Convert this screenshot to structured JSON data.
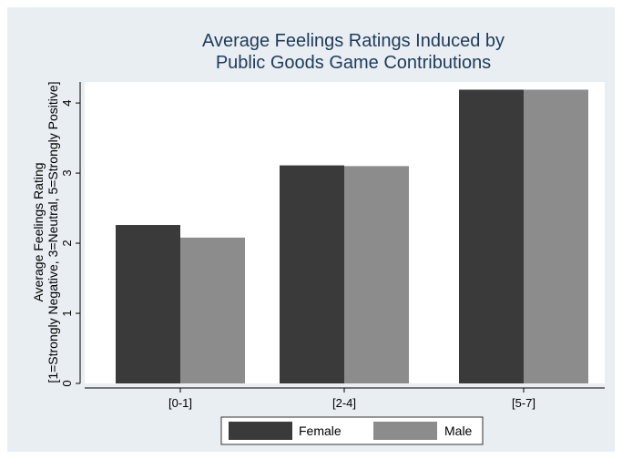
{
  "chart_data": {
    "type": "bar",
    "title_lines": [
      "Average Feelings Ratings Induced by",
      "Public Goods Game Contributions"
    ],
    "ylabel_lines": [
      "Average Feelings Rating",
      "[1=Strongly Negative, 3=Neutral, 5=Strongly Positive]"
    ],
    "xlabel": "",
    "categories": [
      "[0-1]",
      "[2-4]",
      "[5-7]"
    ],
    "series": [
      {
        "name": "Female",
        "values": [
          2.26,
          3.11,
          4.19
        ],
        "color": "#3a3a3a"
      },
      {
        "name": "Male",
        "values": [
          2.08,
          3.1,
          4.19
        ],
        "color": "#8c8c8c"
      }
    ],
    "yticks": [
      "0",
      "1",
      "2",
      "3",
      "4"
    ],
    "ylim": [
      0,
      4.3
    ],
    "grid": false,
    "legend_position": "bottom",
    "colors": {
      "background": "#e8eef2",
      "plot_background": "#ffffff",
      "title": "#1f3b5a"
    }
  }
}
